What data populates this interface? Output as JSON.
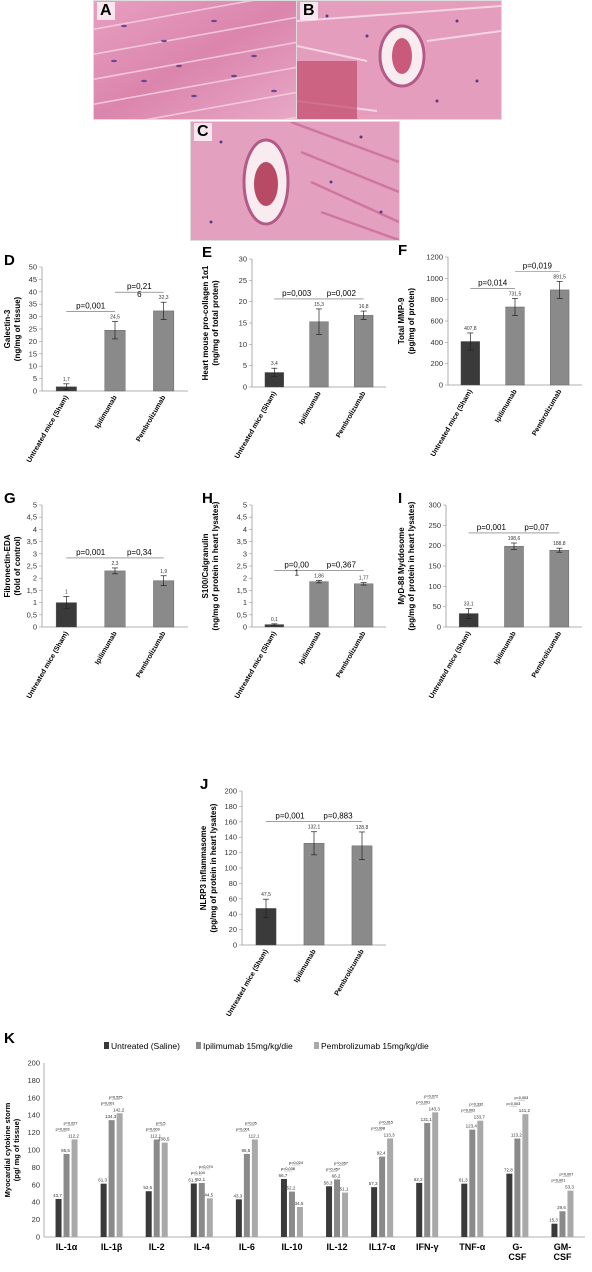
{
  "histology": [
    {
      "label": "A"
    },
    {
      "label": "B"
    },
    {
      "label": "C"
    }
  ],
  "chart_data": [
    {
      "panel": "D",
      "type": "bar",
      "ylabel": "Galectin-3\n(ng/mg of tissue)",
      "categories": [
        "Untreated mice (Sham)",
        "Ipilimumab",
        "Pembrolizumab"
      ],
      "values": [
        1.7,
        24.5,
        32.3
      ],
      "errors": [
        1.2,
        3.5,
        3.5
      ],
      "value_labels": [
        "1,7",
        "24,5",
        "32,3"
      ],
      "ylim": [
        0,
        50
      ],
      "yticks": [
        0,
        5,
        10,
        15,
        20,
        25,
        30,
        35,
        40,
        45,
        50
      ],
      "bar_colors": [
        "#3a3a3a",
        "#8a8a8a",
        "#8a8a8a"
      ],
      "annotations": [
        {
          "from": 0,
          "to": 1,
          "text": "p=0,001"
        },
        {
          "from": 1,
          "to": 2,
          "text": "p=0,21\n6"
        }
      ]
    },
    {
      "panel": "E",
      "type": "bar",
      "ylabel": "Heart mouse pro-collagen 1α1\n(ng/mg of total proten)",
      "categories": [
        "Untreated mice (Sham)",
        "Ipilimumab",
        "Pembrolizumab"
      ],
      "values": [
        3.4,
        15.3,
        16.8
      ],
      "errors": [
        1.0,
        3.0,
        1.0
      ],
      "value_labels": [
        "3,4",
        "15,3",
        "16,8"
      ],
      "ylim": [
        0,
        30
      ],
      "yticks": [
        0,
        5,
        10,
        15,
        20,
        25,
        30
      ],
      "bar_colors": [
        "#3a3a3a",
        "#8a8a8a",
        "#8a8a8a"
      ],
      "annotations": [
        {
          "from": 0,
          "to": 1,
          "text": "p=0,003"
        },
        {
          "from": 1,
          "to": 2,
          "text": "p=0,002"
        }
      ]
    },
    {
      "panel": "F",
      "type": "bar",
      "ylabel": "Total MMP-9\n(pg/mg of proten)",
      "categories": [
        "Untreated mice (Sham)",
        "Ipilimumab",
        "Pembrolizumab"
      ],
      "values": [
        407.8,
        731.5,
        891.5
      ],
      "errors": [
        80,
        80,
        80
      ],
      "value_labels": [
        "407,8",
        "731,5",
        "891,5"
      ],
      "ylim": [
        0,
        1200
      ],
      "yticks": [
        0,
        200,
        400,
        600,
        800,
        1000,
        1200
      ],
      "bar_colors": [
        "#3a3a3a",
        "#8a8a8a",
        "#8a8a8a"
      ],
      "annotations": [
        {
          "from": 0,
          "to": 1,
          "text": "p=0,014"
        },
        {
          "from": 1,
          "to": 2,
          "text": "p=0,019"
        }
      ]
    },
    {
      "panel": "G",
      "type": "bar",
      "ylabel": "Fibronectin-EDA\n(fold of control)",
      "categories": [
        "Untreated mice (Sham)",
        "Ipilimumab",
        "Pembrolizumab"
      ],
      "values": [
        1,
        2.3,
        1.9
      ],
      "errors": [
        0.25,
        0.12,
        0.2
      ],
      "value_labels": [
        "1",
        "2,3",
        "1,9"
      ],
      "ylim": [
        0,
        5
      ],
      "yticks": [
        0,
        0.5,
        1,
        1.5,
        2,
        2.5,
        3,
        3.5,
        4,
        4.5,
        5
      ],
      "bar_colors": [
        "#3a3a3a",
        "#8a8a8a",
        "#8a8a8a"
      ],
      "annotations": [
        {
          "from": 0,
          "to": 1,
          "text": "p=0,001"
        },
        {
          "from": 1,
          "to": 2,
          "text": "p=0,34"
        }
      ]
    },
    {
      "panel": "H",
      "type": "bar",
      "ylabel": "S100/Calgranulin\n(ng/mg of protein in heart lysates)",
      "categories": [
        "Untreated mice (Sham)",
        "Ipilimumab",
        "Pembrolizumab"
      ],
      "values": [
        0.1,
        1.86,
        1.77
      ],
      "errors": [
        0.03,
        0.05,
        0.05
      ],
      "value_labels": [
        "0,1",
        "1,86",
        "1,77"
      ],
      "ylim": [
        0,
        5
      ],
      "yticks": [
        0,
        0.5,
        1,
        1.5,
        2,
        2.5,
        3,
        3.5,
        4,
        4.5,
        5
      ],
      "bar_colors": [
        "#3a3a3a",
        "#8a8a8a",
        "#8a8a8a"
      ],
      "annotations": [
        {
          "from": 0,
          "to": 1,
          "text": "p=0,00\n1"
        },
        {
          "from": 1,
          "to": 2,
          "text": "p=0,367"
        }
      ]
    },
    {
      "panel": "I",
      "type": "bar",
      "ylabel": "MyD-88 Myddosome\n(pg/mg of protein in heart lysates)",
      "categories": [
        "Untreated mice (Sham)",
        "Ipilimumab",
        "Pembrolizumab"
      ],
      "values": [
        33.1,
        198.6,
        188.8
      ],
      "errors": [
        12,
        8,
        5
      ],
      "value_labels": [
        "33,1",
        "198,6",
        "188,8"
      ],
      "ylim": [
        0,
        300
      ],
      "yticks": [
        0,
        50,
        100,
        150,
        200,
        250,
        300
      ],
      "bar_colors": [
        "#3a3a3a",
        "#8a8a8a",
        "#8a8a8a"
      ],
      "annotations": [
        {
          "from": 0,
          "to": 1,
          "text": "p=0,001"
        },
        {
          "from": 1,
          "to": 2,
          "text": "p=0,07"
        }
      ]
    },
    {
      "panel": "J",
      "type": "bar",
      "ylabel": "NLRP3 inflammasome\n(pg/mg of protein in heart lysates)",
      "categories": [
        "Untreated mice (Sham)",
        "Ipilimumab",
        "Pembrolizumab"
      ],
      "values": [
        47.5,
        132.1,
        128.8
      ],
      "errors": [
        12,
        15,
        18
      ],
      "value_labels": [
        "47,5",
        "132,1",
        "128,8"
      ],
      "ylim": [
        0,
        200
      ],
      "yticks": [
        0,
        20,
        40,
        60,
        80,
        100,
        120,
        140,
        160,
        180,
        200
      ],
      "bar_colors": [
        "#3a3a3a",
        "#8a8a8a",
        "#8a8a8a"
      ],
      "annotations": [
        {
          "from": 0,
          "to": 1,
          "text": "p=0,001"
        },
        {
          "from": 1,
          "to": 2,
          "text": "p=0,883"
        }
      ]
    },
    {
      "panel": "K",
      "type": "bar",
      "ylabel": "Myocardial cytokine storm\n(pg/ mg of tissue)",
      "categories": [
        "IL-1α",
        "IL-1β",
        "IL-2",
        "IL-4",
        "IL-6",
        "IL-10",
        "IL-12",
        "IL17-α",
        "IFN-γ",
        "TNF-α",
        "G-\nCSF",
        "GM-\nCSF"
      ],
      "ylim": [
        0,
        200
      ],
      "yticks": [
        0,
        20,
        40,
        60,
        80,
        100,
        120,
        140,
        160,
        180,
        200
      ],
      "series": [
        {
          "name": "Untreated (Saline)",
          "color": "#3a3a3a",
          "values": [
            43.7,
            61.3,
            52.6,
            61.5,
            43.3,
            66.7,
            58.3,
            57.3,
            62.2,
            61.3,
            72.8,
            15.3
          ],
          "labels": [
            "43,7",
            "61,3",
            "52,6",
            "61,5",
            "43,3",
            "66,7",
            "58,3",
            "57,3",
            "62,2",
            "61,3",
            "72,8",
            "15,3"
          ]
        },
        {
          "name": "Ipilimumab 15mg/kg/die",
          "color": "#8a8a8a",
          "values": [
            95.5,
            134.3,
            112.1,
            62.1,
            95.5,
            52.2,
            66.2,
            92.4,
            131.1,
            123.4,
            113.2,
            29.6
          ],
          "labels": [
            "95,5",
            "134,3",
            "112,1",
            "62,1",
            "95,5",
            "52,2",
            "66,2",
            "92,4",
            "131,1",
            "123,4",
            "113,2",
            "29,6"
          ]
        },
        {
          "name": "Pembrolizumab 15mg/kg/die",
          "color": "#a9a9a9",
          "values": [
            112.2,
            142.2,
            108.5,
            44.5,
            112.1,
            34.5,
            51.1,
            113.3,
            143.3,
            133.7,
            141.2,
            53.3
          ],
          "labels": [
            "112,2",
            "142,2",
            "108,5",
            "44,5",
            "112,1",
            "34,5",
            "51,1",
            "113,3",
            "143,3",
            "133,7",
            "141,2",
            "53,3"
          ]
        }
      ],
      "legend": "top",
      "annotations": [
        [
          "p=0,003",
          "p=0,027"
        ],
        [
          "p=0,001",
          "p=0,525"
        ],
        [
          "p=0,003",
          "p=0,5"
        ],
        [
          "p=0,104",
          "p=0,074"
        ],
        [
          "p=0,001",
          "p=0,05"
        ],
        [
          "p=0,038",
          "p=0,024"
        ],
        [
          "p=0,457",
          "p=0,057"
        ],
        [
          "p=0,008",
          "p=0,015"
        ],
        [
          "p=0,001",
          "p=0,072"
        ],
        [
          "p=0,002",
          "p=0,332"
        ],
        [
          "p=0,003",
          "p=0,003"
        ],
        [
          "p=0,001",
          "p=0,007"
        ]
      ]
    }
  ]
}
